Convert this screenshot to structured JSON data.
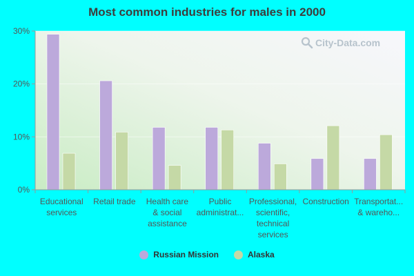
{
  "colors": {
    "page_background": "#00ffff",
    "series_1": "#bca9db",
    "series_2": "#c5d9a6",
    "axis": "#999999"
  },
  "chart_data": {
    "type": "bar",
    "title": "Most common industries for males in 2000",
    "xlabel": "",
    "ylabel": "",
    "ylim": [
      0,
      30
    ],
    "yticks": [
      0,
      10,
      20,
      30
    ],
    "ytick_labels": [
      "0%",
      "10%",
      "20%",
      "30%"
    ],
    "grid": false,
    "legend_position": "bottom",
    "categories": [
      [
        "Educational",
        "services"
      ],
      [
        "Retail trade"
      ],
      [
        "Health care",
        "& social",
        "assistance"
      ],
      [
        "Public",
        "administrat..."
      ],
      [
        "Professional,",
        "scientific,",
        "technical",
        "services"
      ],
      [
        "Construction"
      ],
      [
        "Transportat...",
        "& wareho..."
      ]
    ],
    "series": [
      {
        "name": "Russian Mission",
        "values": [
          29.4,
          20.6,
          11.8,
          11.8,
          8.8,
          5.9,
          5.9
        ]
      },
      {
        "name": "Alaska",
        "values": [
          6.9,
          10.9,
          4.6,
          11.3,
          4.9,
          12.1,
          10.4
        ]
      }
    ]
  },
  "watermark": "City-Data.com"
}
